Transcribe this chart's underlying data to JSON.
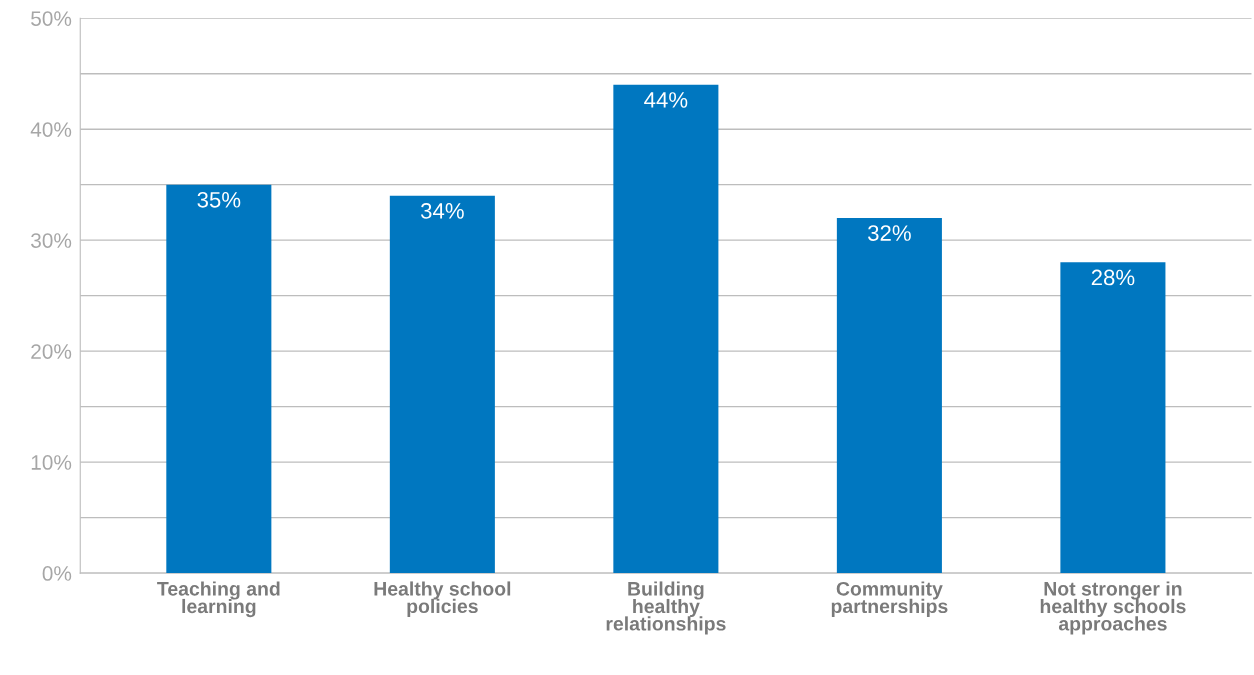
{
  "chart_data": {
    "type": "bar",
    "categories": [
      "Teaching and\nlearning",
      "Healthy school\npolicies",
      "Building\nhealthy\nrelationships",
      "Community\npartnerships",
      "Not stronger in\nhealthy schools\napproaches"
    ],
    "values": [
      35,
      34,
      44,
      32,
      28
    ],
    "value_labels": [
      "35%",
      "34%",
      "44%",
      "32%",
      "28%"
    ],
    "color": "#0077c0",
    "ylim": [
      0,
      50
    ],
    "yticks": [
      {
        "value": 0,
        "label": "0%"
      },
      {
        "value": 5,
        "label": null
      },
      {
        "value": 10,
        "label": "10%"
      },
      {
        "value": 15,
        "label": null
      },
      {
        "value": 20,
        "label": "20%"
      },
      {
        "value": 25,
        "label": null
      },
      {
        "value": 30,
        "label": "30%"
      },
      {
        "value": 35,
        "label": null
      },
      {
        "value": 40,
        "label": "40%"
      },
      {
        "value": 45,
        "label": null
      },
      {
        "value": 50,
        "label": "50%"
      }
    ],
    "grid": "y",
    "legend": false
  }
}
